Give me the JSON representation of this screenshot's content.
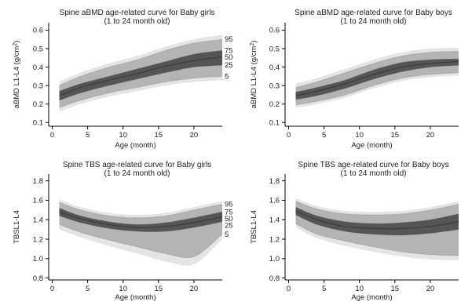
{
  "figure": {
    "percentile_labels": [
      "95",
      "75",
      "50",
      "25",
      "5"
    ]
  },
  "chart_data": [
    {
      "type": "area",
      "title": "Spine aBMD age-related curve for Baby girls",
      "subtitle": "(1 to 24 month old)",
      "xlabel": "Age (month)",
      "ylabel_main": "aBMD L1-L4 (g/cm",
      "ylabel_sup": "2",
      "ylabel_tail": ")",
      "xlim": [
        -0.5,
        24
      ],
      "ylim": [
        0.08,
        0.64
      ],
      "xticks": [
        0,
        5,
        10,
        15,
        20
      ],
      "yticks": [
        0.1,
        0.2,
        0.3,
        0.4,
        0.5,
        0.6
      ],
      "ytick_labels": [
        "0.1",
        "0.2",
        "0.3",
        "0.4",
        "0.5",
        "0.6"
      ],
      "x": [
        1,
        4,
        8,
        12,
        16,
        20,
        24
      ],
      "series": [
        {
          "name": "95",
          "values": [
            0.3,
            0.35,
            0.4,
            0.44,
            0.49,
            0.53,
            0.55
          ]
        },
        {
          "name": "75",
          "values": [
            0.27,
            0.31,
            0.35,
            0.39,
            0.43,
            0.47,
            0.49
          ]
        },
        {
          "name": "50",
          "values": [
            0.245,
            0.29,
            0.33,
            0.365,
            0.405,
            0.435,
            0.455
          ]
        },
        {
          "name": "25",
          "values": [
            0.22,
            0.26,
            0.3,
            0.335,
            0.37,
            0.4,
            0.41
          ]
        },
        {
          "name": "5",
          "values": [
            0.18,
            0.22,
            0.26,
            0.29,
            0.32,
            0.34,
            0.35
          ]
        }
      ],
      "outer_band": {
        "upper": [
          0.32,
          0.37,
          0.42,
          0.46,
          0.51,
          0.55,
          0.575
        ],
        "lower": [
          0.16,
          0.2,
          0.24,
          0.27,
          0.3,
          0.32,
          0.33
        ]
      }
    },
    {
      "type": "area",
      "title": "Spine aBMD age-related curve for Baby boys",
      "subtitle": "(1 to 24 month old)",
      "xlabel": "Age (month)",
      "ylabel_main": "aBMD L1-L4 (g/cm",
      "ylabel_sup": "2",
      "ylabel_tail": ")",
      "xlim": [
        -0.5,
        24
      ],
      "ylim": [
        0.08,
        0.64
      ],
      "xticks": [
        0,
        5,
        10,
        15,
        20
      ],
      "yticks": [
        0.1,
        0.2,
        0.3,
        0.4,
        0.5,
        0.6
      ],
      "ytick_labels": [
        "0.1",
        "0.2",
        "0.3",
        "0.4",
        "0.5",
        "0.6"
      ],
      "x": [
        1,
        4,
        8,
        12,
        16,
        20,
        24
      ],
      "series": [
        {
          "name": "95",
          "values": [
            0.29,
            0.32,
            0.37,
            0.42,
            0.46,
            0.48,
            0.485
          ]
        },
        {
          "name": "75",
          "values": [
            0.265,
            0.29,
            0.33,
            0.385,
            0.425,
            0.44,
            0.445
          ]
        },
        {
          "name": "50",
          "values": [
            0.245,
            0.27,
            0.31,
            0.36,
            0.4,
            0.42,
            0.43
          ]
        },
        {
          "name": "25",
          "values": [
            0.225,
            0.245,
            0.285,
            0.335,
            0.375,
            0.4,
            0.41
          ]
        },
        {
          "name": "5",
          "values": [
            0.195,
            0.215,
            0.25,
            0.3,
            0.34,
            0.36,
            0.37
          ]
        }
      ],
      "outer_band": {
        "upper": [
          0.31,
          0.34,
          0.39,
          0.44,
          0.48,
          0.5,
          0.505
        ],
        "lower": [
          0.18,
          0.2,
          0.235,
          0.285,
          0.325,
          0.345,
          0.355
        ]
      }
    },
    {
      "type": "area",
      "title": "Spine TBS age-related curve for Baby girls",
      "subtitle": "(1 to 24 month old)",
      "xlabel": "Age (month)",
      "ylabel_main": "TBSL1-L4",
      "ylabel_sup": "",
      "ylabel_tail": "",
      "xlim": [
        -0.5,
        24
      ],
      "ylim": [
        0.78,
        1.87
      ],
      "xticks": [
        0,
        5,
        10,
        15,
        20
      ],
      "yticks": [
        0.8,
        1.0,
        1.2,
        1.4,
        1.6,
        1.8
      ],
      "ytick_labels": [
        "0.8",
        "1.0",
        "1.2",
        "1.4",
        "1.6",
        "1.8"
      ],
      "x": [
        1,
        4,
        8,
        12,
        16,
        20,
        24
      ],
      "series": [
        {
          "name": "95",
          "values": [
            1.58,
            1.5,
            1.44,
            1.42,
            1.44,
            1.5,
            1.56
          ]
        },
        {
          "name": "75",
          "values": [
            1.52,
            1.44,
            1.38,
            1.35,
            1.37,
            1.42,
            1.48
          ]
        },
        {
          "name": "50",
          "values": [
            1.48,
            1.41,
            1.35,
            1.32,
            1.33,
            1.37,
            1.43
          ]
        },
        {
          "name": "25",
          "values": [
            1.44,
            1.37,
            1.31,
            1.28,
            1.28,
            1.32,
            1.38
          ]
        },
        {
          "name": "5",
          "values": [
            1.35,
            1.27,
            1.19,
            1.12,
            1.05,
            1.02,
            1.25
          ]
        }
      ],
      "outer_band": {
        "upper": [
          1.61,
          1.53,
          1.47,
          1.45,
          1.47,
          1.53,
          1.59
        ],
        "lower": [
          1.3,
          1.22,
          1.13,
          1.05,
          0.97,
          0.94,
          1.2
        ]
      }
    },
    {
      "type": "area",
      "title": "Spine TBS age-related curve for Baby boys",
      "subtitle": "(1 to 24 month old)",
      "xlabel": "Age (month)",
      "ylabel_main": "TBSL1-L4",
      "ylabel_sup": "",
      "ylabel_tail": "",
      "xlim": [
        -0.5,
        24
      ],
      "ylim": [
        0.78,
        1.87
      ],
      "xticks": [
        0,
        5,
        10,
        15,
        20
      ],
      "yticks": [
        0.8,
        1.0,
        1.2,
        1.4,
        1.6,
        1.8
      ],
      "ytick_labels": [
        "0.8",
        "1.0",
        "1.2",
        "1.4",
        "1.6",
        "1.8"
      ],
      "x": [
        1,
        4,
        8,
        12,
        16,
        20,
        24
      ],
      "series": [
        {
          "name": "95",
          "values": [
            1.59,
            1.51,
            1.46,
            1.45,
            1.46,
            1.5,
            1.56
          ]
        },
        {
          "name": "75",
          "values": [
            1.53,
            1.44,
            1.38,
            1.36,
            1.37,
            1.4,
            1.46
          ]
        },
        {
          "name": "50",
          "values": [
            1.49,
            1.4,
            1.33,
            1.31,
            1.31,
            1.33,
            1.38
          ]
        },
        {
          "name": "25",
          "values": [
            1.45,
            1.35,
            1.28,
            1.25,
            1.24,
            1.26,
            1.3
          ]
        },
        {
          "name": "5",
          "values": [
            1.36,
            1.25,
            1.18,
            1.12,
            1.07,
            1.04,
            1.03
          ]
        }
      ],
      "outer_band": {
        "upper": [
          1.62,
          1.54,
          1.49,
          1.48,
          1.49,
          1.53,
          1.59
        ],
        "lower": [
          1.32,
          1.21,
          1.13,
          1.07,
          1.02,
          0.99,
          0.98
        ]
      }
    }
  ],
  "colors": {
    "outer_band": "#e4e4e4",
    "p5_p95_band": "#b4b4b4",
    "p25_p75_band": "#555555",
    "median_line": "#3a3a3a",
    "axis": "#000000"
  }
}
